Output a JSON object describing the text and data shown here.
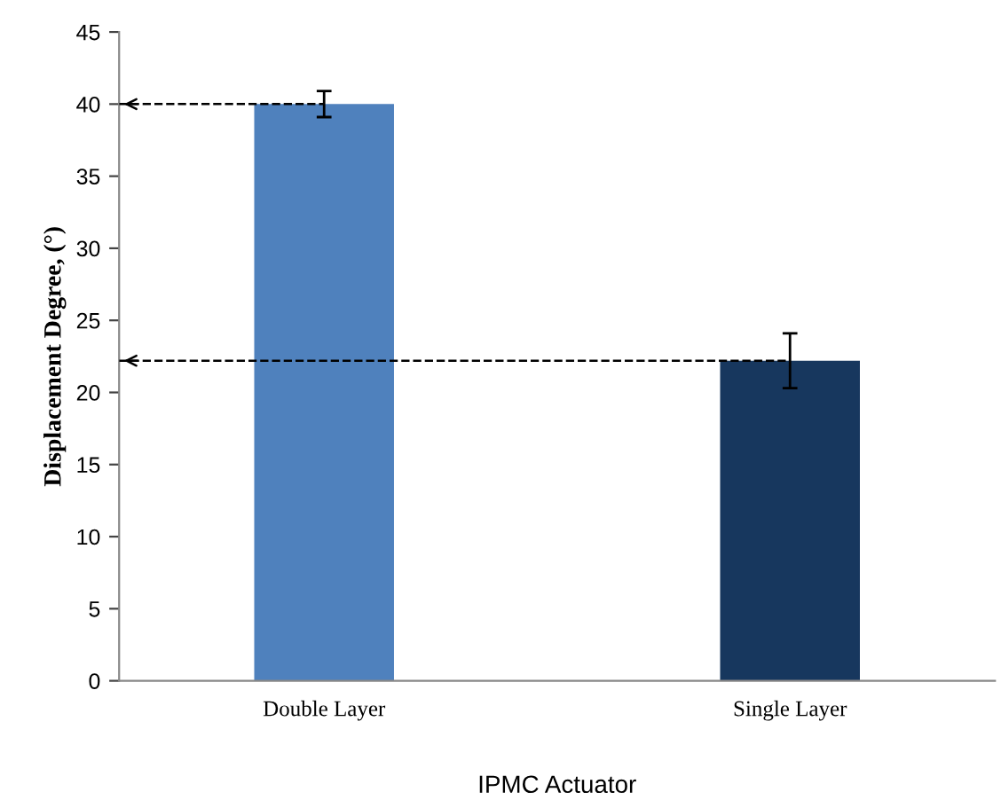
{
  "chart_data": {
    "type": "bar",
    "xlabel": "IPMC Actuator",
    "ylabel": "Displacement Degree, (°)",
    "categories": [
      "Double Layer",
      "Single Layer"
    ],
    "values": [
      40,
      22.2
    ],
    "errors": [
      0.9,
      1.9
    ],
    "colors": [
      "#4f81bd",
      "#17375e"
    ],
    "ylim": [
      0,
      45
    ],
    "yticks": [
      0,
      5,
      10,
      15,
      20,
      25,
      30,
      35,
      40,
      45
    ],
    "ref_lines": [
      {
        "axis": "y",
        "value": 40,
        "color": "#000000",
        "line_style": "dashed"
      },
      {
        "axis": "y",
        "value": 22.2,
        "color": "#000000",
        "line_style": "dashed"
      }
    ],
    "grid": false,
    "legend": false
  }
}
